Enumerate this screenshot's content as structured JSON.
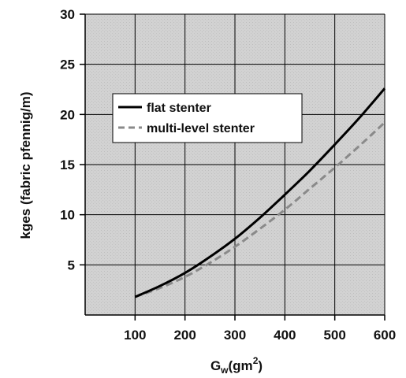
{
  "chart_data": {
    "type": "line",
    "title": "",
    "xlabel": {
      "base": "G",
      "sub": "w",
      "rest": "(gm",
      "sup": "2",
      "close": ")"
    },
    "ylabel": "kges (fabric pfennig/m)",
    "xlim": [
      0,
      600
    ],
    "ylim": [
      0,
      30
    ],
    "x_ticks": [
      100,
      200,
      300,
      400,
      500,
      600
    ],
    "x_tick_labels": [
      "100",
      "200",
      "300",
      "400",
      "500",
      "600"
    ],
    "y_ticks": [
      5,
      10,
      15,
      20,
      25,
      30
    ],
    "y_tick_labels": [
      "5",
      "10",
      "15",
      "20",
      "25",
      "30"
    ],
    "grid": true,
    "legend_position": "upper-left",
    "plot_background": "#cfcfcf",
    "series": [
      {
        "name": "flat stenter",
        "color": "#000000",
        "style": "solid",
        "x": [
          100,
          150,
          200,
          250,
          300,
          350,
          400,
          450,
          500,
          550,
          600
        ],
        "y": [
          1.8,
          2.9,
          4.2,
          5.8,
          7.6,
          9.7,
          12.0,
          14.4,
          17.0,
          19.7,
          22.6
        ]
      },
      {
        "name": "multi-level stenter",
        "color": "#8a8a8a",
        "style": "dashed",
        "x": [
          100,
          150,
          200,
          250,
          300,
          350,
          400,
          450,
          500,
          550,
          600
        ],
        "y": [
          1.8,
          2.7,
          3.8,
          5.2,
          6.8,
          8.6,
          10.5,
          12.6,
          14.7,
          16.9,
          19.2
        ]
      }
    ]
  }
}
